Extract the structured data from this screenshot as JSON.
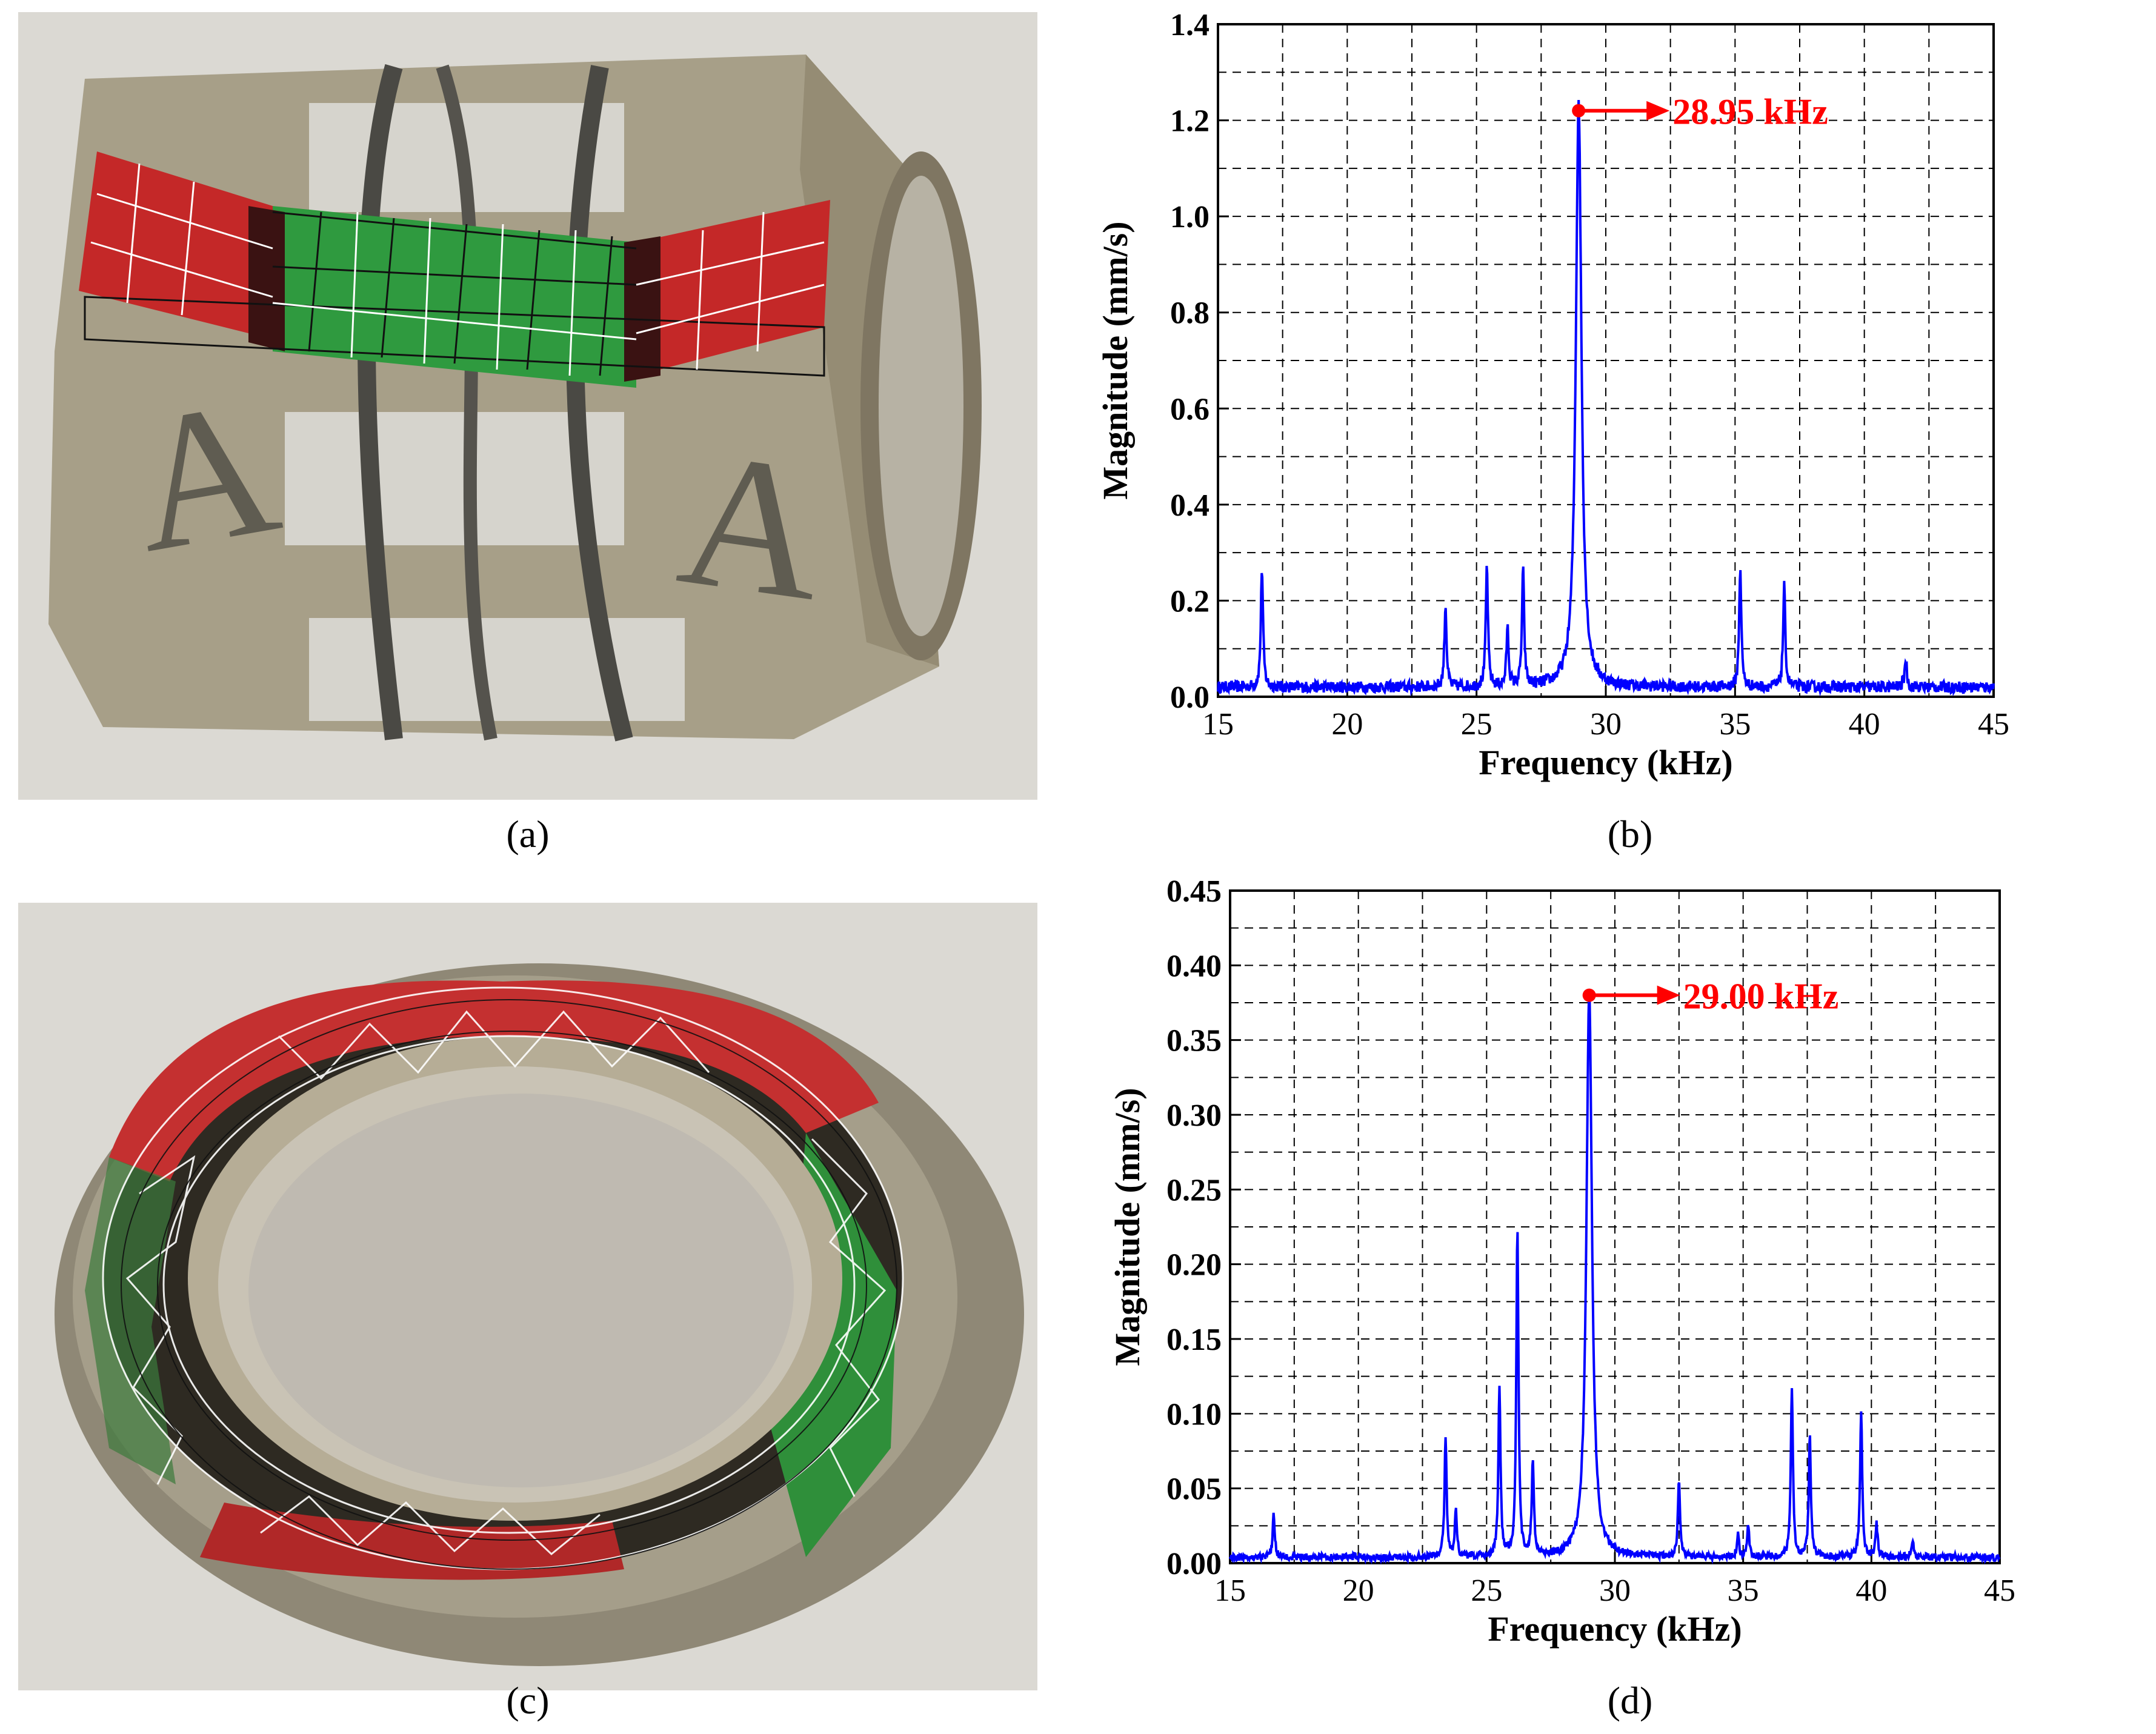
{
  "captions": {
    "a": "(a)",
    "b": "(b)",
    "c": "(c)",
    "d": "(d)"
  },
  "colors": {
    "trace": "#0000ff",
    "annotation": "#ff0000",
    "grid": "#000000",
    "mode_red": "#c82020",
    "mode_green": "#2a9a3a",
    "device_metal": "#a89f86",
    "photo_bg": "#d8d6d0"
  },
  "chart_data": [
    {
      "panel": "b",
      "type": "line",
      "xlabel": "Frequency (kHz)",
      "ylabel": "Magnitude (mm/s)",
      "xlim": [
        15,
        45
      ],
      "ylim": [
        0,
        1.4
      ],
      "xticks": [
        15,
        20,
        25,
        30,
        35,
        40,
        45
      ],
      "yticks": [
        "0.0",
        "0.2",
        "0.4",
        "0.6",
        "0.8",
        "1.0",
        "1.2",
        "1.4"
      ],
      "grid": true,
      "baseline": 0.02,
      "peaks": [
        {
          "x": 16.7,
          "y": 0.25
        },
        {
          "x": 23.8,
          "y": 0.17
        },
        {
          "x": 25.4,
          "y": 0.25
        },
        {
          "x": 26.2,
          "y": 0.12
        },
        {
          "x": 26.8,
          "y": 0.24
        },
        {
          "x": 28.95,
          "y": 1.22
        },
        {
          "x": 35.2,
          "y": 0.25
        },
        {
          "x": 36.9,
          "y": 0.21
        },
        {
          "x": 41.6,
          "y": 0.06
        }
      ],
      "annotation": {
        "x": 28.95,
        "y": 1.22,
        "label": "28.95 kHz"
      }
    },
    {
      "panel": "d",
      "type": "line",
      "xlabel": "Frequency (kHz)",
      "ylabel": "Magnitude (mm/s)",
      "xlim": [
        15,
        45
      ],
      "ylim": [
        0,
        0.45
      ],
      "xticks": [
        15,
        20,
        25,
        30,
        35,
        40,
        45
      ],
      "yticks": [
        "0.00",
        "0.05",
        "0.10",
        "0.15",
        "0.20",
        "0.25",
        "0.30",
        "0.35",
        "0.40",
        "0.45"
      ],
      "grid": true,
      "baseline": 0.004,
      "peaks": [
        {
          "x": 16.7,
          "y": 0.028
        },
        {
          "x": 23.4,
          "y": 0.08
        },
        {
          "x": 23.8,
          "y": 0.03
        },
        {
          "x": 25.5,
          "y": 0.113
        },
        {
          "x": 26.2,
          "y": 0.222
        },
        {
          "x": 26.8,
          "y": 0.063
        },
        {
          "x": 29.0,
          "y": 0.38
        },
        {
          "x": 32.5,
          "y": 0.052
        },
        {
          "x": 34.8,
          "y": 0.015
        },
        {
          "x": 35.2,
          "y": 0.02
        },
        {
          "x": 36.9,
          "y": 0.113
        },
        {
          "x": 37.6,
          "y": 0.08
        },
        {
          "x": 39.6,
          "y": 0.098
        },
        {
          "x": 40.2,
          "y": 0.022
        },
        {
          "x": 41.6,
          "y": 0.012
        }
      ],
      "annotation": {
        "x": 29.0,
        "y": 0.38,
        "label": "29.00 kHz"
      }
    }
  ]
}
